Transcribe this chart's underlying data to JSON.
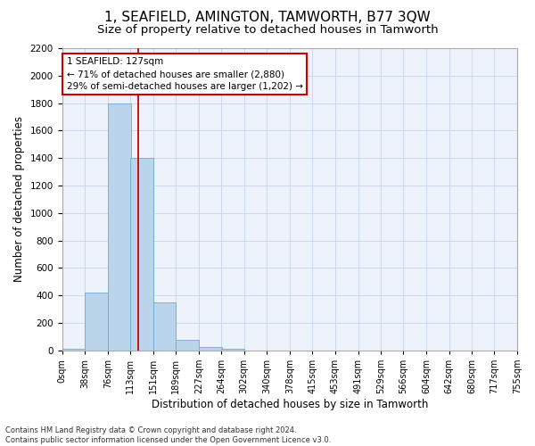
{
  "title": "1, SEAFIELD, AMINGTON, TAMWORTH, B77 3QW",
  "subtitle": "Size of property relative to detached houses in Tamworth",
  "xlabel": "Distribution of detached houses by size in Tamworth",
  "ylabel": "Number of detached properties",
  "bar_color": "#bad4ec",
  "bar_edge_color": "#6aaad4",
  "background_color": "#eef2fb",
  "grid_color": "#c8d4ea",
  "annotation_text": "1 SEAFIELD: 127sqm\n← 71% of detached houses are smaller (2,880)\n29% of semi-detached houses are larger (1,202) →",
  "vline_x": 127,
  "bin_edges": [
    0,
    38,
    76,
    113,
    151,
    189,
    227,
    264,
    302,
    340,
    378,
    415,
    453,
    491,
    529,
    566,
    604,
    642,
    680,
    717,
    755
  ],
  "bin_counts": [
    10,
    420,
    1800,
    1400,
    350,
    80,
    25,
    10,
    0,
    0,
    0,
    0,
    0,
    0,
    0,
    0,
    0,
    0,
    0,
    0
  ],
  "ylim": [
    0,
    2200
  ],
  "yticks": [
    0,
    200,
    400,
    600,
    800,
    1000,
    1200,
    1400,
    1600,
    1800,
    2000,
    2200
  ],
  "footer_text": "Contains HM Land Registry data © Crown copyright and database right 2024.\nContains public sector information licensed under the Open Government Licence v3.0.",
  "annotation_box_color": "#ffffff",
  "annotation_box_edge": "#cc0000",
  "vline_color": "#cc0000",
  "title_fontsize": 11,
  "subtitle_fontsize": 9.5,
  "tick_label_fontsize": 7,
  "ylabel_fontsize": 8.5,
  "xlabel_fontsize": 8.5,
  "annotation_fontsize": 7.5
}
